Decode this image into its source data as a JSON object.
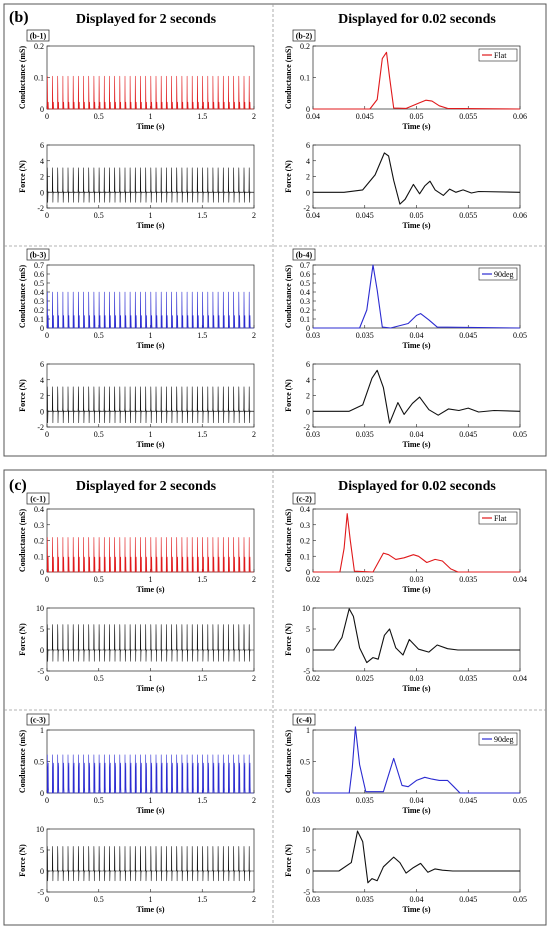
{
  "section_b": {
    "tag": "(b)",
    "left_header": "Displayed for 2 seconds",
    "right_header": "Displayed for 0.02 seconds"
  },
  "section_c": {
    "tag": "(c)",
    "left_header": "Displayed for 2 seconds",
    "right_header": "Displayed for 0.02 seconds"
  },
  "colors": {
    "flat": "#e0191b",
    "deg90": "#2b2bd1",
    "force": "#111111"
  },
  "chart_data": [
    {
      "id": "b-1",
      "panel_label": "(b-1)",
      "type": "line",
      "xlabel": "Time (s)",
      "ylabel": "Conductance (mS)",
      "xlim": [
        0,
        2
      ],
      "ylim": [
        0,
        0.2
      ],
      "xticks": [
        0,
        0.5,
        1,
        1.5,
        2
      ],
      "xtick_labels": [
        "0",
        "0.5",
        "1",
        "1.5",
        "2"
      ],
      "yticks": [
        0,
        0.1,
        0.2
      ],
      "ytick_labels": [
        "0",
        "0.1",
        "0.2"
      ],
      "series": [
        {
          "style": "flat",
          "signal": "conductance",
          "pulse_count": 40,
          "peak": 0.18,
          "secondary_peak": 0.025,
          "baseline": 0.0
        }
      ]
    },
    {
      "id": "b-1f",
      "panel_label": "",
      "type": "line",
      "xlabel": "Time (s)",
      "ylabel": "Force (N)",
      "xlim": [
        0,
        2
      ],
      "ylim": [
        -2,
        6
      ],
      "xticks": [
        0,
        0.5,
        1,
        1.5,
        2
      ],
      "xtick_labels": [
        "0",
        "0.5",
        "1",
        "1.5",
        "2"
      ],
      "yticks": [
        -2,
        0,
        2,
        4,
        6
      ],
      "ytick_labels": [
        "-2",
        "0",
        "2",
        "4",
        "6"
      ],
      "series": [
        {
          "style": "force",
          "signal": "force",
          "pulse_count": 40,
          "peak": 5.2,
          "min": -1.6,
          "baseline": 0.0
        }
      ]
    },
    {
      "id": "b-2",
      "panel_label": "(b-2)",
      "type": "line",
      "xlabel": "Time (s)",
      "ylabel": "Conductance (mS)",
      "xlim": [
        0.04,
        0.06
      ],
      "ylim": [
        0,
        0.2
      ],
      "xticks": [
        0.04,
        0.045,
        0.05,
        0.055,
        0.06
      ],
      "xtick_labels": [
        "0.04",
        "0.045",
        "0.05",
        "0.055",
        "0.06"
      ],
      "yticks": [
        0,
        0.1,
        0.2
      ],
      "ytick_labels": [
        "0",
        "0.1",
        "0.2"
      ],
      "legend": "Flat",
      "legend_color_key": "flat",
      "series": [
        {
          "style": "flat",
          "signal": "conductance",
          "x": [
            0.04,
            0.0455,
            0.0462,
            0.0467,
            0.0471,
            0.0474,
            0.0478,
            0.049,
            0.0503,
            0.0509,
            0.0515,
            0.0522,
            0.053,
            0.06
          ],
          "y": [
            0.0,
            0.0,
            0.03,
            0.16,
            0.18,
            0.1,
            0.003,
            0.002,
            0.02,
            0.028,
            0.025,
            0.01,
            0.002,
            0.0
          ]
        }
      ]
    },
    {
      "id": "b-2f",
      "panel_label": "",
      "type": "line",
      "xlabel": "Time (s)",
      "ylabel": "Force (N)",
      "xlim": [
        0.04,
        0.06
      ],
      "ylim": [
        -2,
        6
      ],
      "xticks": [
        0.04,
        0.045,
        0.05,
        0.055,
        0.06
      ],
      "xtick_labels": [
        "0.04",
        "0.045",
        "0.05",
        "0.055",
        "0.06"
      ],
      "yticks": [
        -2,
        0,
        2,
        4,
        6
      ],
      "ytick_labels": [
        "-2",
        "0",
        "2",
        "4",
        "6"
      ],
      "series": [
        {
          "style": "force",
          "signal": "force",
          "x": [
            0.04,
            0.043,
            0.0448,
            0.046,
            0.0469,
            0.0473,
            0.0478,
            0.0484,
            0.0489,
            0.0497,
            0.0503,
            0.0508,
            0.0513,
            0.0518,
            0.0526,
            0.0532,
            0.0538,
            0.0545,
            0.0553,
            0.056,
            0.06
          ],
          "y": [
            0.0,
            0.0,
            0.3,
            2.2,
            5.0,
            4.6,
            1.5,
            -1.5,
            -0.9,
            1.0,
            -0.2,
            0.8,
            1.4,
            0.3,
            -0.4,
            0.4,
            0.0,
            0.3,
            -0.1,
            0.1,
            0.0
          ]
        }
      ]
    },
    {
      "id": "b-3",
      "panel_label": "(b-3)",
      "type": "line",
      "xlabel": "Time (s)",
      "ylabel": "Conductance (mS)",
      "xlim": [
        0,
        2
      ],
      "ylim": [
        0,
        0.7
      ],
      "xticks": [
        0,
        0.5,
        1,
        1.5,
        2
      ],
      "xtick_labels": [
        "0",
        "0.5",
        "1",
        "1.5",
        "2"
      ],
      "yticks": [
        0,
        0.1,
        0.2,
        0.3,
        0.4,
        0.5,
        0.6,
        0.7
      ],
      "ytick_labels": [
        "0",
        "0.1",
        "0.2",
        "0.3",
        "0.4",
        "0.5",
        "0.6",
        "0.7"
      ],
      "series": [
        {
          "style": "deg90",
          "signal": "conductance",
          "pulse_count": 40,
          "peak": 0.69,
          "secondary_peak": 0.16,
          "baseline": 0.0
        }
      ]
    },
    {
      "id": "b-3f",
      "panel_label": "",
      "type": "line",
      "xlabel": "Time (s)",
      "ylabel": "Force (N)",
      "xlim": [
        0,
        2
      ],
      "ylim": [
        -2,
        6
      ],
      "xticks": [
        0,
        0.5,
        1,
        1.5,
        2
      ],
      "xtick_labels": [
        "0",
        "0.5",
        "1",
        "1.5",
        "2"
      ],
      "yticks": [
        -2,
        0,
        2,
        4,
        6
      ],
      "ytick_labels": [
        "-2",
        "0",
        "2",
        "4",
        "6"
      ],
      "series": [
        {
          "style": "force",
          "signal": "force",
          "pulse_count": 40,
          "peak": 5.2,
          "min": -1.8,
          "baseline": 0.0
        }
      ]
    },
    {
      "id": "b-4",
      "panel_label": "(b-4)",
      "type": "line",
      "xlabel": "Time (s)",
      "ylabel": "Conductance (mS)",
      "xlim": [
        0.03,
        0.05
      ],
      "ylim": [
        0,
        0.7
      ],
      "xticks": [
        0.03,
        0.035,
        0.04,
        0.045,
        0.05
      ],
      "xtick_labels": [
        "0.03",
        "0.035",
        "0.04",
        "0.045",
        "0.05"
      ],
      "yticks": [
        0,
        0.1,
        0.2,
        0.3,
        0.4,
        0.5,
        0.6,
        0.7
      ],
      "ytick_labels": [
        "0",
        "0.1",
        "0.2",
        "0.3",
        "0.4",
        "0.5",
        "0.6",
        "0.7"
      ],
      "legend": "90deg",
      "legend_color_key": "deg90",
      "series": [
        {
          "style": "deg90",
          "signal": "conductance",
          "x": [
            0.03,
            0.0345,
            0.0352,
            0.0358,
            0.0362,
            0.0367,
            0.0375,
            0.0392,
            0.04,
            0.0404,
            0.0412,
            0.042,
            0.05
          ],
          "y": [
            0.0,
            0.0,
            0.2,
            0.7,
            0.42,
            0.01,
            0.0,
            0.05,
            0.14,
            0.16,
            0.09,
            0.01,
            0.0
          ]
        }
      ]
    },
    {
      "id": "b-4f",
      "panel_label": "",
      "type": "line",
      "xlabel": "Time (s)",
      "ylabel": "Force (N)",
      "xlim": [
        0.03,
        0.05
      ],
      "ylim": [
        -2,
        6
      ],
      "xticks": [
        0.03,
        0.035,
        0.04,
        0.045,
        0.05
      ],
      "xtick_labels": [
        "0.03",
        "0.035",
        "0.04",
        "0.045",
        "0.05"
      ],
      "yticks": [
        -2,
        0,
        2,
        4,
        6
      ],
      "ytick_labels": [
        "-2",
        "0",
        "2",
        "4",
        "6"
      ],
      "series": [
        {
          "style": "force",
          "signal": "force",
          "x": [
            0.03,
            0.0335,
            0.0348,
            0.0357,
            0.0362,
            0.0368,
            0.0374,
            0.0382,
            0.0388,
            0.0396,
            0.0403,
            0.0412,
            0.0421,
            0.0431,
            0.0441,
            0.045,
            0.046,
            0.0475,
            0.05
          ],
          "y": [
            0.0,
            0.0,
            0.8,
            4.2,
            5.2,
            3.0,
            -1.5,
            1.1,
            -0.4,
            1.0,
            1.8,
            0.2,
            -0.5,
            0.3,
            0.1,
            0.4,
            -0.1,
            0.1,
            0.0
          ]
        }
      ]
    },
    {
      "id": "c-1",
      "panel_label": "(c-1)",
      "type": "line",
      "xlabel": "Time (s)",
      "ylabel": "Conductance (mS)",
      "xlim": [
        0,
        2
      ],
      "ylim": [
        0,
        0.4
      ],
      "xticks": [
        0,
        0.5,
        1,
        1.5,
        2
      ],
      "xtick_labels": [
        "0",
        "0.5",
        "1",
        "1.5",
        "2"
      ],
      "yticks": [
        0,
        0.1,
        0.2,
        0.3,
        0.4
      ],
      "ytick_labels": [
        "0",
        "0.1",
        "0.2",
        "0.3",
        "0.4"
      ],
      "series": [
        {
          "style": "flat",
          "signal": "conductance",
          "pulse_count": 40,
          "peak": 0.38,
          "secondary_peak": 0.11,
          "baseline": 0.0
        }
      ]
    },
    {
      "id": "c-1f",
      "panel_label": "",
      "type": "line",
      "xlabel": "Time (s)",
      "ylabel": "Force (N)",
      "xlim": [
        0,
        2
      ],
      "ylim": [
        -5,
        10
      ],
      "xticks": [
        0,
        0.5,
        1,
        1.5,
        2
      ],
      "xtick_labels": [
        "0",
        "0.5",
        "1",
        "1.5",
        "2"
      ],
      "yticks": [
        -5,
        0,
        5,
        10
      ],
      "ytick_labels": [
        "-5",
        "0",
        "5",
        "10"
      ],
      "series": [
        {
          "style": "force",
          "signal": "force",
          "pulse_count": 40,
          "peak": 9.8,
          "min": -3.2,
          "baseline": 0.0
        }
      ]
    },
    {
      "id": "c-2",
      "panel_label": "(c-2)",
      "type": "line",
      "xlabel": "Time (s)",
      "ylabel": "Conductance (mS)",
      "xlim": [
        0.02,
        0.04
      ],
      "ylim": [
        0,
        0.4
      ],
      "xticks": [
        0.02,
        0.025,
        0.03,
        0.035,
        0.04
      ],
      "xtick_labels": [
        "0.02",
        "0.025",
        "0.03",
        "0.035",
        "0.04"
      ],
      "yticks": [
        0,
        0.1,
        0.2,
        0.3,
        0.4
      ],
      "ytick_labels": [
        "0",
        "0.1",
        "0.2",
        "0.3",
        "0.4"
      ],
      "legend": "Flat",
      "legend_color_key": "flat",
      "series": [
        {
          "style": "flat",
          "signal": "conductance",
          "x": [
            0.02,
            0.0226,
            0.023,
            0.0233,
            0.0236,
            0.024,
            0.0258,
            0.0268,
            0.0273,
            0.028,
            0.0288,
            0.0297,
            0.0302,
            0.031,
            0.0318,
            0.0325,
            0.0333,
            0.034,
            0.04
          ],
          "y": [
            0.0,
            0.0,
            0.15,
            0.37,
            0.2,
            0.005,
            0.0,
            0.12,
            0.11,
            0.08,
            0.09,
            0.11,
            0.1,
            0.06,
            0.08,
            0.07,
            0.02,
            0.0,
            0.0
          ]
        }
      ]
    },
    {
      "id": "c-2f",
      "panel_label": "",
      "type": "line",
      "xlabel": "Time (s)",
      "ylabel": "Force (N)",
      "xlim": [
        0.02,
        0.04
      ],
      "ylim": [
        -5,
        10
      ],
      "xticks": [
        0.02,
        0.025,
        0.03,
        0.035,
        0.04
      ],
      "xtick_labels": [
        "0.02",
        "0.025",
        "0.03",
        "0.035",
        "0.04"
      ],
      "yticks": [
        -5,
        0,
        5,
        10
      ],
      "ytick_labels": [
        "-5",
        "0",
        "5",
        "10"
      ],
      "series": [
        {
          "style": "force",
          "signal": "force",
          "x": [
            0.02,
            0.022,
            0.0228,
            0.0235,
            0.0239,
            0.0245,
            0.0252,
            0.0258,
            0.0263,
            0.0269,
            0.0274,
            0.028,
            0.0287,
            0.0293,
            0.0302,
            0.0312,
            0.032,
            0.033,
            0.034,
            0.036,
            0.04
          ],
          "y": [
            0.0,
            0.0,
            3.0,
            9.8,
            8.0,
            0.5,
            -3.0,
            -1.8,
            -2.2,
            3.5,
            5.0,
            0.5,
            -1.2,
            2.5,
            0.2,
            -0.5,
            1.2,
            0.3,
            0.0,
            0.0,
            0.0
          ]
        }
      ]
    },
    {
      "id": "c-3",
      "panel_label": "(c-3)",
      "type": "line",
      "xlabel": "Time (s)",
      "ylabel": "Conductance (mS)",
      "xlim": [
        0,
        2
      ],
      "ylim": [
        0,
        1
      ],
      "xticks": [
        0,
        0.5,
        1,
        1.5,
        2
      ],
      "xtick_labels": [
        "0",
        "0.5",
        "1",
        "1.5",
        "2"
      ],
      "yticks": [
        0,
        0.5,
        1
      ],
      "ytick_labels": [
        "0",
        "0.5",
        "1"
      ],
      "series": [
        {
          "style": "deg90",
          "signal": "conductance",
          "pulse_count": 40,
          "peak": 1.05,
          "secondary_peak": 0.55,
          "baseline": 0.0
        }
      ]
    },
    {
      "id": "c-3f",
      "panel_label": "",
      "type": "line",
      "xlabel": "Time (s)",
      "ylabel": "Force (N)",
      "xlim": [
        0,
        2
      ],
      "ylim": [
        -5,
        10
      ],
      "xticks": [
        0,
        0.5,
        1,
        1.5,
        2
      ],
      "xtick_labels": [
        "0",
        "0.5",
        "1",
        "1.5",
        "2"
      ],
      "yticks": [
        -5,
        0,
        5,
        10
      ],
      "ytick_labels": [
        "-5",
        "0",
        "5",
        "10"
      ],
      "series": [
        {
          "style": "force",
          "signal": "force",
          "pulse_count": 40,
          "peak": 9.5,
          "min": -2.8,
          "baseline": 0.0
        }
      ]
    },
    {
      "id": "c-4",
      "panel_label": "(c-4)",
      "type": "line",
      "xlabel": "Time (s)",
      "ylabel": "Conductance (mS)",
      "xlim": [
        0.03,
        0.05
      ],
      "ylim": [
        0,
        1
      ],
      "xticks": [
        0.03,
        0.035,
        0.04,
        0.045,
        0.05
      ],
      "xtick_labels": [
        "0.03",
        "0.035",
        "0.04",
        "0.045",
        "0.05"
      ],
      "yticks": [
        0,
        0.5,
        1
      ],
      "ytick_labels": [
        "0",
        "0.5",
        "1"
      ],
      "legend": "90deg",
      "legend_color_key": "deg90",
      "series": [
        {
          "style": "deg90",
          "signal": "conductance",
          "x": [
            0.03,
            0.0335,
            0.0338,
            0.0341,
            0.0345,
            0.0351,
            0.0368,
            0.0378,
            0.0386,
            0.0392,
            0.04,
            0.0408,
            0.0415,
            0.0422,
            0.043,
            0.0436,
            0.0442,
            0.05
          ],
          "y": [
            0.0,
            0.0,
            0.4,
            1.05,
            0.45,
            0.02,
            0.02,
            0.55,
            0.12,
            0.1,
            0.2,
            0.25,
            0.22,
            0.2,
            0.2,
            0.1,
            0.0,
            0.0
          ]
        }
      ]
    },
    {
      "id": "c-4f",
      "panel_label": "",
      "type": "line",
      "xlabel": "Time (s)",
      "ylabel": "Force (N)",
      "xlim": [
        0.03,
        0.05
      ],
      "ylim": [
        -5,
        10
      ],
      "xticks": [
        0.03,
        0.035,
        0.04,
        0.045,
        0.05
      ],
      "xtick_labels": [
        "0.03",
        "0.035",
        "0.04",
        "0.045",
        "0.05"
      ],
      "yticks": [
        -5,
        0,
        5,
        10
      ],
      "ytick_labels": [
        "-5",
        "0",
        "5",
        "10"
      ],
      "series": [
        {
          "style": "force",
          "signal": "force",
          "x": [
            0.03,
            0.0325,
            0.0337,
            0.0343,
            0.0348,
            0.0353,
            0.0357,
            0.0362,
            0.0368,
            0.0378,
            0.0384,
            0.039,
            0.0397,
            0.0404,
            0.0411,
            0.0418,
            0.0425,
            0.0435,
            0.045,
            0.05
          ],
          "y": [
            0.0,
            0.0,
            2.0,
            9.5,
            7.0,
            -2.8,
            -1.8,
            -2.3,
            1.0,
            3.3,
            2.0,
            -0.5,
            0.8,
            1.8,
            -0.3,
            0.5,
            0.2,
            0.0,
            0.0,
            0.0
          ]
        }
      ]
    }
  ]
}
